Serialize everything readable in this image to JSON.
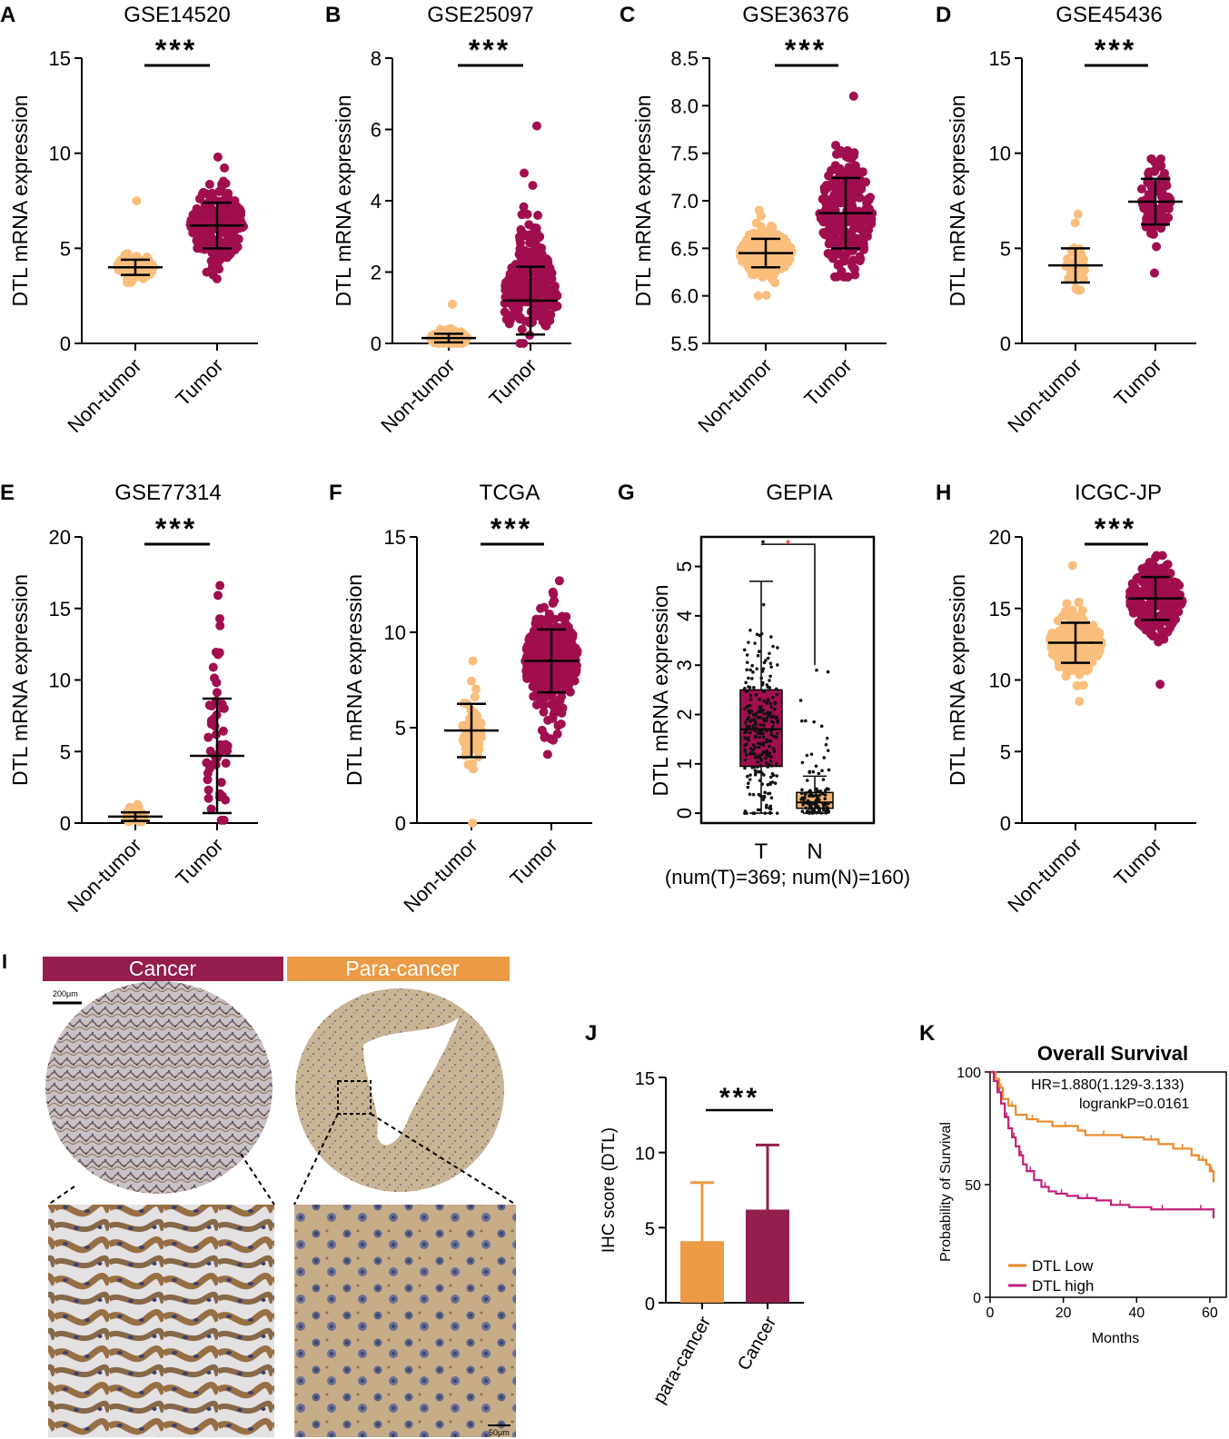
{
  "colors": {
    "nontumor": "#F9BE7C",
    "tumor": "#A00E4F",
    "ihc_para": "#EB9A45",
    "ihc_cancer": "#931E4D",
    "km_low": "#E98A25",
    "km_high": "#C21F7A",
    "gepia_box_t": "#A10F4F",
    "gepia_box_n": "#F5B46A",
    "sig_red": "#E02020"
  },
  "chart_data": [
    {
      "panel": "A",
      "type": "scatter",
      "title": "GSE14520",
      "ylabel": "DTL mRNA expression",
      "ylim": [
        0,
        15
      ],
      "yticks": [
        0,
        5,
        10,
        15
      ],
      "categories": [
        "Non-tumor",
        "Tumor"
      ],
      "significance": "***",
      "groups": [
        {
          "name": "Non-tumor",
          "mean": 4.0,
          "sd": 0.4,
          "min": 3.2,
          "max": 7.5,
          "n": 120
        },
        {
          "name": "Tumor",
          "mean": 6.2,
          "sd": 1.2,
          "min": 3.4,
          "max": 9.8,
          "n": 220
        }
      ]
    },
    {
      "panel": "B",
      "type": "scatter",
      "title": "GSE25097",
      "ylabel": "DTL mRNA expression",
      "ylim": [
        0,
        8
      ],
      "yticks": [
        0,
        2,
        4,
        6,
        8
      ],
      "categories": [
        "Non-tumor",
        "Tumor"
      ],
      "significance": "***",
      "groups": [
        {
          "name": "Non-tumor",
          "mean": 0.15,
          "sd": 0.12,
          "min": 0.0,
          "max": 1.1,
          "n": 120
        },
        {
          "name": "Tumor",
          "mean": 1.2,
          "sd": 0.95,
          "min": 0.0,
          "max": 6.1,
          "n": 260
        }
      ]
    },
    {
      "panel": "C",
      "type": "scatter",
      "title": "GSE36376",
      "ylabel": "DTL mRNA expression",
      "ylim": [
        5.5,
        8.5
      ],
      "yticks": [
        5.5,
        6.0,
        6.5,
        7.0,
        7.5,
        8.0,
        8.5
      ],
      "ytick_decimals": 1,
      "categories": [
        "Non-tumor",
        "Tumor"
      ],
      "significance": "***",
      "groups": [
        {
          "name": "Non-tumor",
          "mean": 6.45,
          "sd": 0.15,
          "min": 6.0,
          "max": 6.9,
          "n": 190
        },
        {
          "name": "Tumor",
          "mean": 6.87,
          "sd": 0.37,
          "min": 6.2,
          "max": 8.1,
          "n": 240
        }
      ]
    },
    {
      "panel": "D",
      "type": "scatter",
      "title": "GSE45436",
      "ylabel": "DTL mRNA expression",
      "ylim": [
        0,
        15
      ],
      "yticks": [
        0,
        5,
        10,
        15
      ],
      "categories": [
        "Non-tumor",
        "Tumor"
      ],
      "significance": "***",
      "groups": [
        {
          "name": "Non-tumor",
          "mean": 4.1,
          "sd": 0.9,
          "min": 2.8,
          "max": 6.8,
          "n": 40
        },
        {
          "name": "Tumor",
          "mean": 7.45,
          "sd": 1.2,
          "min": 3.7,
          "max": 9.7,
          "n": 90
        }
      ]
    },
    {
      "panel": "E",
      "type": "scatter",
      "title": "GSE77314",
      "ylabel": "DTL mRNA expression",
      "ylim": [
        0,
        20
      ],
      "yticks": [
        0,
        5,
        10,
        15,
        20
      ],
      "categories": [
        "Non-tumor",
        "Tumor"
      ],
      "significance": "***",
      "groups": [
        {
          "name": "Non-tumor",
          "mean": 0.45,
          "sd": 0.3,
          "min": 0.1,
          "max": 1.3,
          "n": 50
        },
        {
          "name": "Tumor",
          "mean": 4.7,
          "sd": 4.0,
          "min": 0.2,
          "max": 16.6,
          "n": 50
        }
      ]
    },
    {
      "panel": "F",
      "type": "scatter",
      "title": "TCGA",
      "ylabel": "DTL mRNA expression",
      "ylim": [
        0,
        15
      ],
      "yticks": [
        0,
        5,
        10,
        15
      ],
      "categories": [
        "Non-tumor",
        "Tumor"
      ],
      "significance": "***",
      "groups": [
        {
          "name": "Non-tumor",
          "mean": 4.85,
          "sd": 1.4,
          "min": 0.0,
          "max": 8.5,
          "n": 50
        },
        {
          "name": "Tumor",
          "mean": 8.5,
          "sd": 1.65,
          "min": 3.6,
          "max": 12.7,
          "n": 370
        }
      ]
    },
    {
      "panel": "G",
      "type": "box",
      "title": "GEPIA",
      "ylabel": "DTL mRNA expression",
      "ylim": [
        -0.2,
        5.6
      ],
      "yticks": [
        0,
        1,
        2,
        3,
        4,
        5
      ],
      "categories": [
        "T",
        "N"
      ],
      "significance": "*",
      "caption": "(num(T)=369; num(N)=160)",
      "boxes": [
        {
          "name": "T",
          "whisker_low": 0.0,
          "q1": 0.95,
          "median": 1.7,
          "q3": 2.5,
          "whisker_high": 4.7,
          "max": 5.5,
          "n": 369
        },
        {
          "name": "N",
          "whisker_low": 0.0,
          "q1": 0.1,
          "median": 0.22,
          "q3": 0.42,
          "whisker_high": 0.75,
          "max": 2.9,
          "n": 160
        }
      ]
    },
    {
      "panel": "H",
      "type": "scatter",
      "title": "ICGC-JP",
      "ylabel": "DTL mRNA expression",
      "ylim": [
        0,
        20
      ],
      "yticks": [
        0,
        5,
        10,
        15,
        20
      ],
      "categories": [
        "Non-tumor",
        "Tumor"
      ],
      "significance": "***",
      "groups": [
        {
          "name": "Non-tumor",
          "mean": 12.6,
          "sd": 1.4,
          "min": 8.5,
          "max": 18.0,
          "n": 190
        },
        {
          "name": "Tumor",
          "mean": 15.7,
          "sd": 1.5,
          "min": 9.7,
          "max": 18.7,
          "n": 230
        }
      ]
    },
    {
      "panel": "J",
      "type": "bar",
      "title": "",
      "ylabel": "IHC score (DTL)",
      "ylim": [
        0,
        15
      ],
      "yticks": [
        0,
        5,
        10,
        15
      ],
      "categories": [
        "para-cancer",
        "Cancer"
      ],
      "significance": "***",
      "values": [
        4.1,
        6.2
      ],
      "error": [
        3.9,
        4.3
      ]
    },
    {
      "panel": "K",
      "type": "line",
      "title": "Overall Survival",
      "xlabel": "Months",
      "ylabel": "Probability of Survival",
      "xlim": [
        0,
        62
      ],
      "xticks": [
        0,
        20,
        40,
        60
      ],
      "ylim": [
        0,
        100
      ],
      "yticks": [
        0,
        50,
        100
      ],
      "annotation": [
        "HR=1.880(1.129-3.133)",
        "logrankP=0.0161"
      ],
      "series": [
        {
          "name": "DTL Low",
          "x": [
            0,
            1.5,
            2.5,
            3.5,
            5,
            7,
            10,
            13,
            17,
            24,
            26,
            36,
            42,
            46,
            50,
            55,
            57,
            59,
            60,
            61
          ],
          "y": [
            100,
            97,
            93,
            88,
            85,
            81,
            79,
            78,
            76,
            74,
            72,
            71,
            70,
            68,
            66,
            63,
            61,
            59,
            56,
            51
          ]
        },
        {
          "name": "DTL high",
          "x": [
            0,
            1,
            2,
            3,
            4,
            5,
            6,
            7,
            8,
            9,
            10,
            12,
            14,
            16,
            18,
            21,
            24,
            29,
            33,
            38,
            44,
            50,
            55,
            60,
            61
          ],
          "y": [
            100,
            96,
            91,
            86,
            80,
            75,
            71,
            67,
            63,
            59,
            56,
            52,
            49,
            47,
            46,
            45,
            44,
            43,
            41,
            40,
            39,
            39,
            39,
            39,
            35
          ]
        }
      ]
    }
  ],
  "panel_i": {
    "label": "I",
    "cancer_label": "Cancer",
    "para_label": "Para-cancer",
    "scale_top": "200μm",
    "scale_bottom": "50μm"
  },
  "axis_text": {
    "nontumor_label": "Non-tumor",
    "tumor_label": "Tumor"
  }
}
